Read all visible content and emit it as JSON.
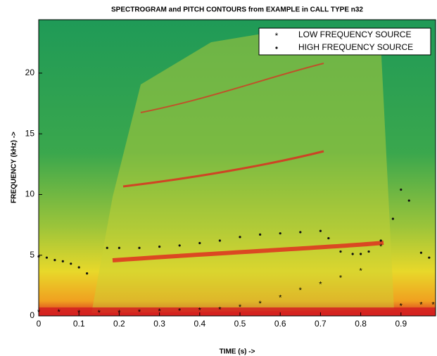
{
  "chart_data": {
    "type": "scatter",
    "title": "SPECTROGRAM and PITCH CONTOURS from EXAMPLE in CALL TYPE n32",
    "x_label": "TIME (s) ->",
    "y_label": "FREQUENCY (kHz) ->",
    "xlim": [
      0,
      0.986
    ],
    "xticks": [
      0,
      0.1,
      0.2,
      0.3,
      0.4,
      0.5,
      0.6,
      0.7,
      0.8,
      0.9
    ],
    "ylim": [
      0,
      24.4
    ],
    "yticks": [
      0,
      5,
      10,
      15,
      20
    ],
    "legend": "top-right",
    "series": [
      {
        "name": "LOW FREQUENCY SOURCE",
        "marker": "*",
        "color": "#5a3fa0",
        "x": [
          0,
          0.05,
          0.1,
          0.15,
          0.2,
          0.25,
          0.3,
          0.35,
          0.4,
          0.45,
          0.5,
          0.55,
          0.6,
          0.65,
          0.7,
          0.75,
          0.8,
          0.85,
          0.9,
          0.95,
          0.98
        ],
        "values": [
          0.4,
          0.4,
          0.35,
          0.35,
          0.35,
          0.4,
          0.45,
          0.5,
          0.55,
          0.6,
          0.8,
          1.1,
          1.6,
          2.2,
          2.7,
          3.2,
          3.8,
          5.8,
          0.9,
          1.0,
          1.0
        ]
      },
      {
        "name": "HIGH FREQUENCY SOURCE",
        "marker": ".",
        "color": "#111111",
        "x": [
          0,
          0.02,
          0.04,
          0.06,
          0.08,
          0.1,
          0.12,
          0.17,
          0.2,
          0.25,
          0.3,
          0.35,
          0.4,
          0.45,
          0.5,
          0.55,
          0.6,
          0.65,
          0.7,
          0.72,
          0.75,
          0.78,
          0.8,
          0.82,
          0.85,
          0.88,
          0.9,
          0.92,
          0.95,
          0.97
        ],
        "values": [
          4.9,
          4.8,
          4.6,
          4.5,
          4.3,
          4.0,
          3.5,
          5.6,
          5.6,
          5.6,
          5.7,
          5.8,
          6.0,
          6.2,
          6.5,
          6.7,
          6.8,
          6.9,
          7.0,
          6.4,
          5.3,
          5.1,
          5.1,
          5.3,
          6.2,
          8.0,
          10.4,
          9.5,
          5.2,
          4.8
        ]
      }
    ]
  }
}
